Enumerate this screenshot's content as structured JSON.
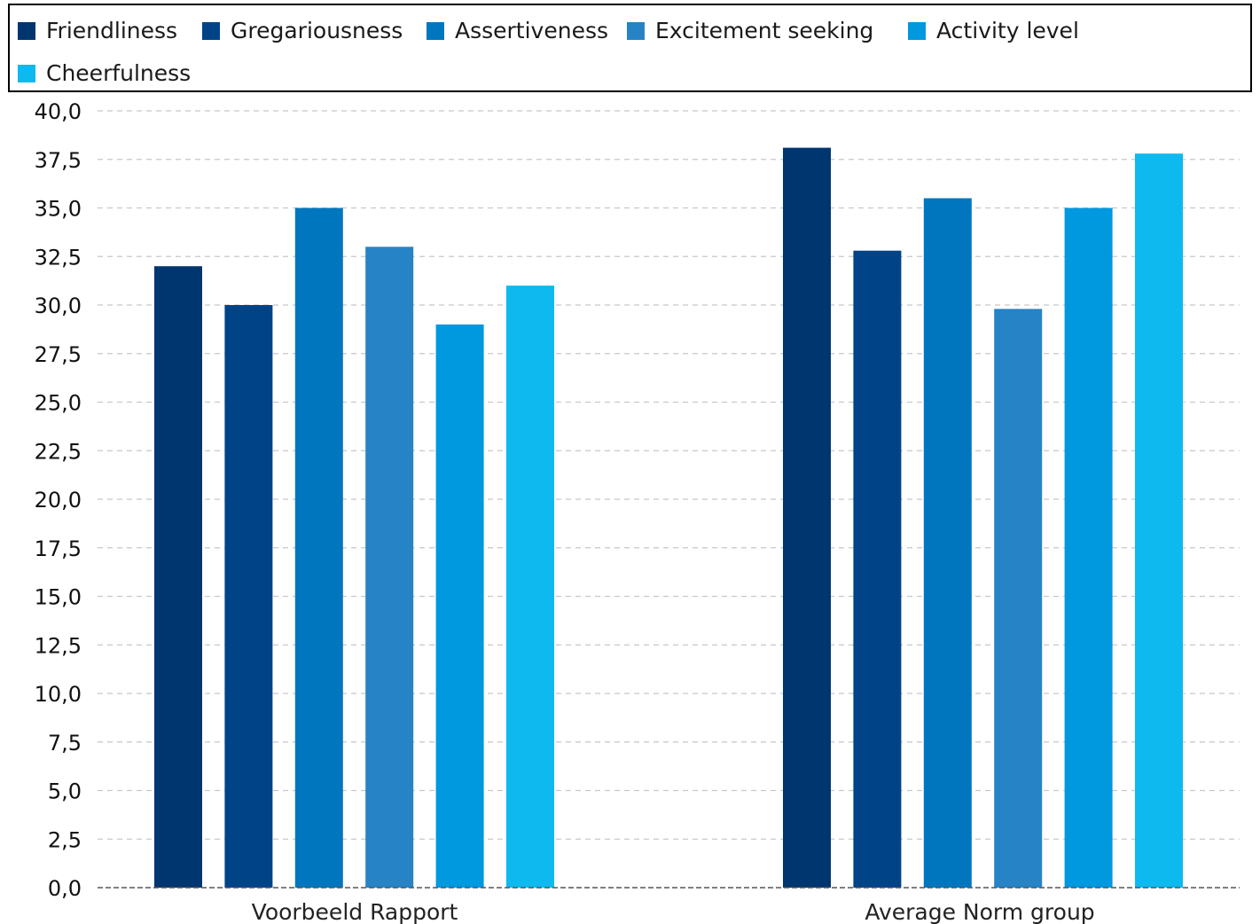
{
  "chart_data": {
    "type": "bar",
    "categories": [
      "Voorbeeld Rapport",
      "Average Norm group"
    ],
    "series": [
      {
        "name": "Friendliness",
        "color": "#003670",
        "values": [
          32.0,
          38.1
        ]
      },
      {
        "name": "Gregariousness",
        "color": "#004487",
        "values": [
          30.0,
          32.8
        ]
      },
      {
        "name": "Assertiveness",
        "color": "#0076BE",
        "values": [
          35.0,
          35.5
        ]
      },
      {
        "name": "Excitement seeking",
        "color": "#2683C6",
        "values": [
          33.0,
          29.8
        ]
      },
      {
        "name": "Activity level",
        "color": "#0098DE",
        "values": [
          29.0,
          35.0
        ]
      },
      {
        "name": "Cheerfulness",
        "color": "#0DB9EF",
        "values": [
          31.0,
          37.8
        ]
      }
    ],
    "yticks": [
      "0,0",
      "2,5",
      "5,0",
      "7,5",
      "10,0",
      "12,5",
      "15,0",
      "17,5",
      "20,0",
      "22,5",
      "25,0",
      "27,5",
      "30,0",
      "32,5",
      "35,0",
      "37,5",
      "40,0"
    ],
    "ylim": [
      0,
      40
    ],
    "grid": true,
    "legend_position": "top"
  }
}
